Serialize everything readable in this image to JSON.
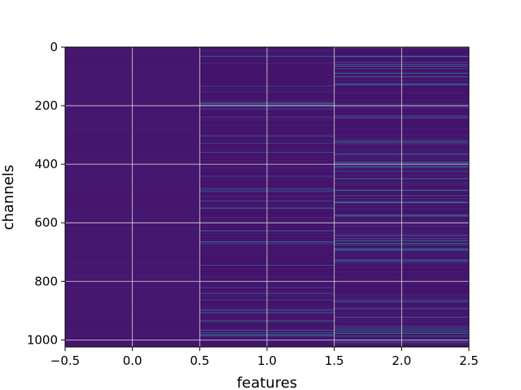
{
  "chart_data": {
    "type": "heatmap",
    "title": "",
    "xlabel": "features",
    "ylabel": "channels",
    "xlim": [
      -0.5,
      2.5
    ],
    "ylim": [
      1024,
      0
    ],
    "y_inverted": true,
    "grid": true,
    "colormap": "viridis",
    "columns": [
      {
        "feature": 0,
        "description": "uniformly low values (dark purple) across all channels"
      },
      {
        "feature": 1,
        "description": "mostly low values with scattered higher-valued channels (teal/blue lines)"
      },
      {
        "feature": 2,
        "description": "mostly low values with more frequent and brighter higher-valued channels"
      }
    ],
    "xticks": [
      "−0.5",
      "0.0",
      "0.5",
      "1.0",
      "1.5",
      "2.0",
      "2.5"
    ],
    "xtick_values": [
      -0.5,
      0.0,
      0.5,
      1.0,
      1.5,
      2.0,
      2.5
    ],
    "yticks": [
      "0",
      "200",
      "400",
      "600",
      "800",
      "1000"
    ],
    "ytick_values": [
      0,
      200,
      400,
      600,
      800,
      1000
    ]
  },
  "colors": {
    "low": "#45146e",
    "mid": "#3b518b",
    "high": "#26a08f",
    "grid": "#d9d9d9"
  }
}
